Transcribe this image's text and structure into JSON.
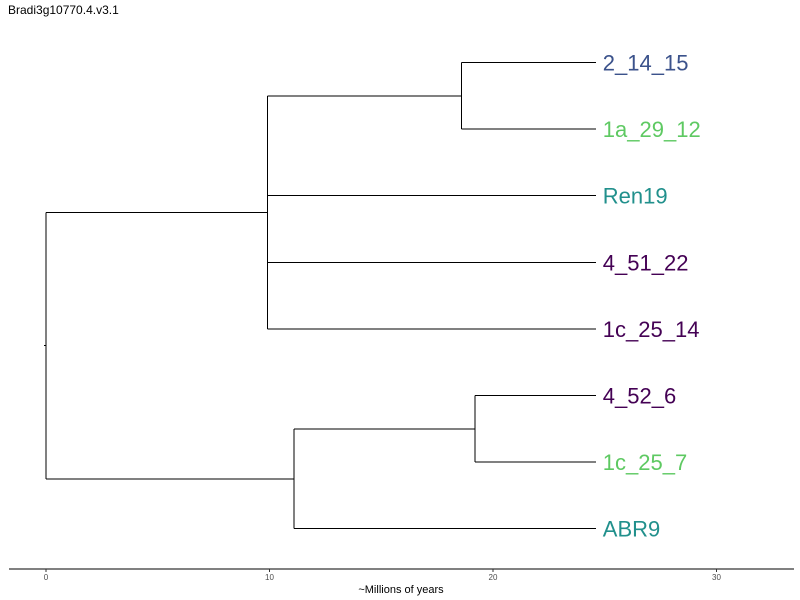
{
  "title": "Bradi3g10770.4.v3.1",
  "colors": {
    "dark_purple": "#440154",
    "blue": "#3b528b",
    "teal": "#21908c",
    "green": "#5ec962",
    "branch": "#000000"
  },
  "chart_data": {
    "type": "dendrogram",
    "xlabel": "~Millions of years",
    "xlim": [
      0,
      33
    ],
    "ticks": [
      0,
      10,
      20,
      30
    ],
    "tick_labels": [
      "0",
      "10",
      "20",
      "30"
    ],
    "leaf_tip": 24.6,
    "leaves": [
      {
        "label": "2_14_15",
        "color": "#3b528b"
      },
      {
        "label": "1a_29_12",
        "color": "#5ec962"
      },
      {
        "label": "Ren19",
        "color": "#21908c"
      },
      {
        "label": "4_51_22",
        "color": "#440154"
      },
      {
        "label": "1c_25_14",
        "color": "#440154"
      },
      {
        "label": "4_52_6",
        "color": "#440154"
      },
      {
        "label": "1c_25_7",
        "color": "#5ec962"
      },
      {
        "label": "ABR9",
        "color": "#21908c"
      }
    ],
    "nodes": [
      {
        "id": "n1",
        "x": 18.6,
        "children": [
          "L0",
          "L1"
        ]
      },
      {
        "id": "n2",
        "x": 9.9,
        "children": [
          "n1",
          "L2",
          "L3",
          "L4"
        ]
      },
      {
        "id": "n3",
        "x": 19.2,
        "children": [
          "L5",
          "L6"
        ]
      },
      {
        "id": "n4",
        "x": 11.1,
        "children": [
          "n3",
          "L7"
        ]
      },
      {
        "id": "root",
        "x": 0,
        "children": [
          "n2",
          "n4"
        ]
      }
    ]
  }
}
